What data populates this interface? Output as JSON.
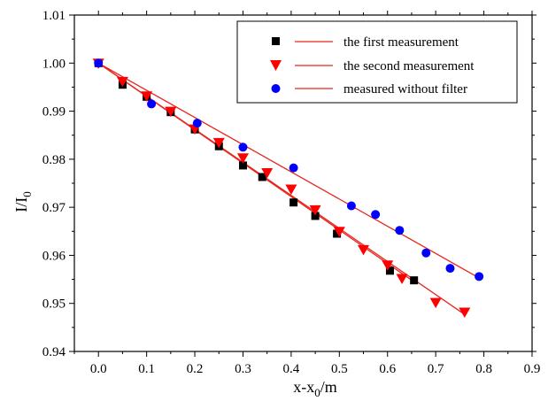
{
  "chart_data": {
    "type": "scatter",
    "title": "",
    "xlabel_main": "x-x",
    "xlabel_sub": "0",
    "xlabel_tail": "/m",
    "ylabel_main": "I/I",
    "ylabel_sub": "0",
    "xlim": [
      -0.05,
      0.9
    ],
    "ylim": [
      0.94,
      1.01
    ],
    "x_ticks": [
      "0.0",
      "0.1",
      "0.2",
      "0.3",
      "0.4",
      "0.5",
      "0.6",
      "0.7",
      "0.8",
      "0.9"
    ],
    "x_tick_values": [
      0.0,
      0.1,
      0.2,
      0.3,
      0.4,
      0.5,
      0.6,
      0.7,
      0.8,
      0.9
    ],
    "y_ticks": [
      "0.94",
      "0.95",
      "0.96",
      "0.97",
      "0.98",
      "0.99",
      "1.00",
      "1.01"
    ],
    "y_tick_values": [
      0.94,
      0.95,
      0.96,
      0.97,
      0.98,
      0.99,
      1.0,
      1.01
    ],
    "grid": false,
    "legend_position": "top-right",
    "series": [
      {
        "name": "the first measurement",
        "marker": "square",
        "color": "#000000",
        "line_color": "#e8251f",
        "points": [
          [
            0.0,
            1.0
          ],
          [
            0.05,
            0.9955
          ],
          [
            0.1,
            0.993
          ],
          [
            0.15,
            0.9898
          ],
          [
            0.2,
            0.9862
          ],
          [
            0.25,
            0.9827
          ],
          [
            0.3,
            0.9787
          ],
          [
            0.34,
            0.9763
          ],
          [
            0.405,
            0.971
          ],
          [
            0.45,
            0.9682
          ],
          [
            0.495,
            0.9645
          ],
          [
            0.605,
            0.9568
          ],
          [
            0.655,
            0.9548
          ]
        ],
        "fit": [
          [
            0.0,
            1.0
          ],
          [
            0.655,
            0.9545
          ]
        ]
      },
      {
        "name": "the second measurement",
        "marker": "triangle-down",
        "color": "#ff0000",
        "line_color": "#e8251f",
        "points": [
          [
            0.0,
            1.0
          ],
          [
            0.05,
            0.9962
          ],
          [
            0.1,
            0.9932
          ],
          [
            0.15,
            0.99
          ],
          [
            0.2,
            0.9863
          ],
          [
            0.25,
            0.9835
          ],
          [
            0.3,
            0.9803
          ],
          [
            0.35,
            0.9772
          ],
          [
            0.4,
            0.9738
          ],
          [
            0.45,
            0.9695
          ],
          [
            0.5,
            0.965
          ],
          [
            0.55,
            0.9612
          ],
          [
            0.6,
            0.958
          ],
          [
            0.63,
            0.9552
          ],
          [
            0.7,
            0.9502
          ],
          [
            0.76,
            0.9482
          ]
        ],
        "fit": [
          [
            0.0,
            1.0
          ],
          [
            0.76,
            0.9477
          ]
        ]
      },
      {
        "name": "measured without filter",
        "marker": "circle",
        "color": "#0000ff",
        "line_color": "#e8251f",
        "points": [
          [
            0.0,
            1.0
          ],
          [
            0.11,
            0.9915
          ],
          [
            0.205,
            0.9875
          ],
          [
            0.3,
            0.9825
          ],
          [
            0.405,
            0.9782
          ],
          [
            0.525,
            0.9703
          ],
          [
            0.575,
            0.9685
          ],
          [
            0.625,
            0.9652
          ],
          [
            0.68,
            0.9605
          ],
          [
            0.73,
            0.9573
          ],
          [
            0.79,
            0.9556
          ]
        ],
        "fit": [
          [
            0.0,
            1.0
          ],
          [
            0.79,
            0.9553
          ]
        ]
      }
    ]
  }
}
